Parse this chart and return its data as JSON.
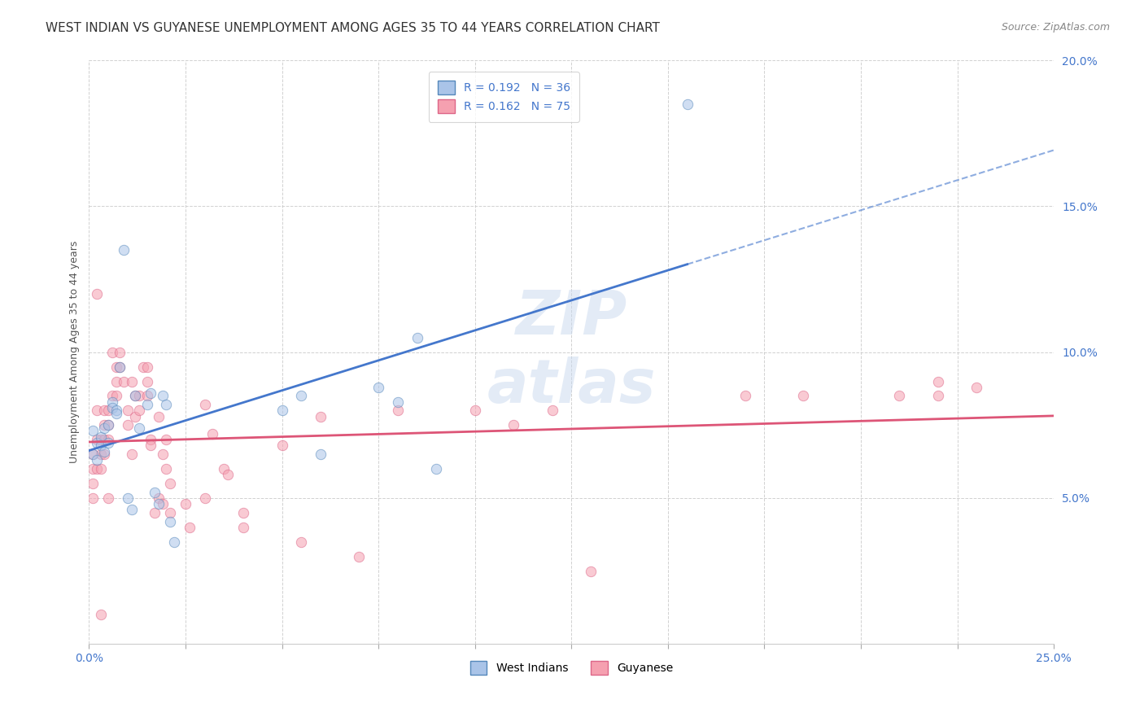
{
  "title": "WEST INDIAN VS GUYANESE UNEMPLOYMENT AMONG AGES 35 TO 44 YEARS CORRELATION CHART",
  "source": "Source: ZipAtlas.com",
  "ylabel": "Unemployment Among Ages 35 to 44 years",
  "xlim": [
    0,
    0.25
  ],
  "ylim": [
    0,
    0.2
  ],
  "xticks": [
    0.0,
    0.025,
    0.05,
    0.075,
    0.1,
    0.125,
    0.15,
    0.175,
    0.2,
    0.225,
    0.25
  ],
  "xtick_labels_show": [
    0.0,
    0.25
  ],
  "yticks": [
    0.05,
    0.1,
    0.15,
    0.2
  ],
  "background_color": "#ffffff",
  "grid_color": "#cccccc",
  "west_indian_color": "#aac4e8",
  "guyanese_color": "#f5a0b0",
  "west_indian_edge": "#5588bb",
  "guyanese_edge": "#dd6688",
  "trend_blue": "#4477cc",
  "trend_pink": "#dd5577",
  "R_west_indian": 0.192,
  "N_west_indian": 36,
  "R_guyanese": 0.162,
  "N_guyanese": 75,
  "west_indian_x": [
    0.001,
    0.001,
    0.002,
    0.002,
    0.003,
    0.003,
    0.004,
    0.004,
    0.005,
    0.005,
    0.006,
    0.006,
    0.007,
    0.007,
    0.008,
    0.009,
    0.01,
    0.011,
    0.012,
    0.013,
    0.015,
    0.016,
    0.017,
    0.018,
    0.019,
    0.02,
    0.021,
    0.022,
    0.05,
    0.055,
    0.06,
    0.075,
    0.08,
    0.085,
    0.09,
    0.155
  ],
  "west_indian_y": [
    0.065,
    0.073,
    0.063,
    0.069,
    0.071,
    0.068,
    0.066,
    0.074,
    0.075,
    0.069,
    0.083,
    0.081,
    0.08,
    0.079,
    0.095,
    0.135,
    0.05,
    0.046,
    0.085,
    0.074,
    0.082,
    0.086,
    0.052,
    0.048,
    0.085,
    0.082,
    0.042,
    0.035,
    0.08,
    0.085,
    0.065,
    0.088,
    0.083,
    0.105,
    0.06,
    0.185
  ],
  "guyanese_x": [
    0.001,
    0.001,
    0.001,
    0.001,
    0.002,
    0.002,
    0.002,
    0.002,
    0.003,
    0.003,
    0.003,
    0.003,
    0.004,
    0.004,
    0.004,
    0.004,
    0.005,
    0.005,
    0.005,
    0.005,
    0.006,
    0.006,
    0.007,
    0.007,
    0.007,
    0.008,
    0.008,
    0.009,
    0.01,
    0.01,
    0.011,
    0.011,
    0.012,
    0.012,
    0.013,
    0.013,
    0.014,
    0.015,
    0.015,
    0.015,
    0.016,
    0.016,
    0.017,
    0.018,
    0.018,
    0.019,
    0.019,
    0.02,
    0.02,
    0.021,
    0.021,
    0.025,
    0.026,
    0.03,
    0.03,
    0.032,
    0.035,
    0.036,
    0.04,
    0.04,
    0.05,
    0.055,
    0.06,
    0.07,
    0.08,
    0.1,
    0.11,
    0.12,
    0.13,
    0.17,
    0.185,
    0.21,
    0.22,
    0.22,
    0.23
  ],
  "guyanese_y": [
    0.065,
    0.06,
    0.055,
    0.05,
    0.06,
    0.07,
    0.08,
    0.12,
    0.06,
    0.065,
    0.07,
    0.01,
    0.07,
    0.075,
    0.08,
    0.065,
    0.075,
    0.08,
    0.07,
    0.05,
    0.085,
    0.1,
    0.09,
    0.095,
    0.085,
    0.1,
    0.095,
    0.09,
    0.08,
    0.075,
    0.09,
    0.065,
    0.085,
    0.078,
    0.085,
    0.08,
    0.095,
    0.095,
    0.09,
    0.085,
    0.07,
    0.068,
    0.045,
    0.05,
    0.078,
    0.065,
    0.048,
    0.07,
    0.06,
    0.055,
    0.045,
    0.048,
    0.04,
    0.082,
    0.05,
    0.072,
    0.06,
    0.058,
    0.04,
    0.045,
    0.068,
    0.035,
    0.078,
    0.03,
    0.08,
    0.08,
    0.075,
    0.08,
    0.025,
    0.085,
    0.085,
    0.085,
    0.09,
    0.085,
    0.088
  ],
  "marker_size": 80,
  "alpha": 0.55,
  "title_fontsize": 11,
  "axis_label_fontsize": 9,
  "tick_fontsize": 10,
  "legend_fontsize": 10,
  "source_fontsize": 9,
  "watermark_color": "#c8d8ee",
  "watermark_alpha": 0.5,
  "tick_color": "#4477cc"
}
